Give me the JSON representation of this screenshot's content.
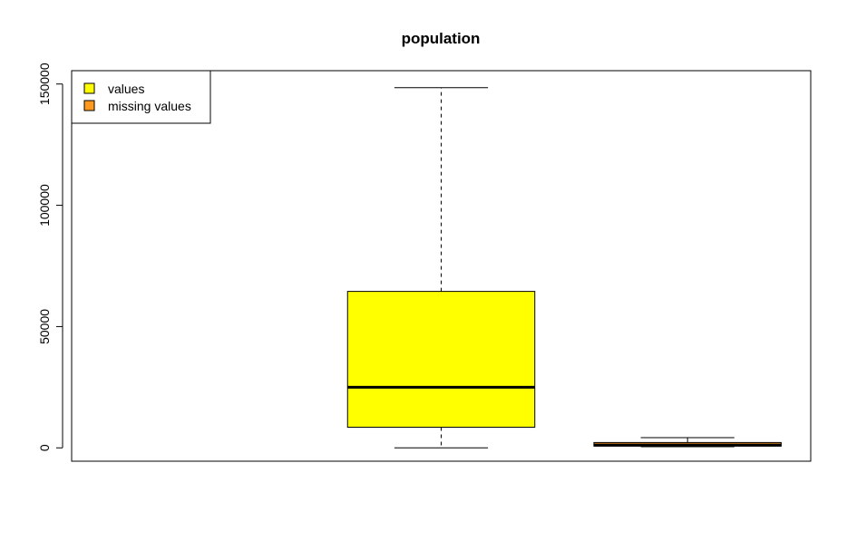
{
  "chart_data": {
    "type": "boxplot",
    "title": "population",
    "xlabel": "",
    "ylabel": "",
    "ylim": [
      -5500,
      155500
    ],
    "yticks": [
      0,
      50000,
      100000,
      150000
    ],
    "ytick_labels": [
      "0",
      "50000",
      "100000",
      "150000"
    ],
    "grid": false,
    "legend": {
      "placement": "top-left",
      "entries": [
        {
          "label": "values",
          "color": "#FFFF00"
        },
        {
          "label": "missing values",
          "color": "#FF9A1E"
        }
      ]
    },
    "boxes": [
      {
        "series": "values",
        "color": "#FFFF00",
        "whisker_low": 0,
        "q1": 8500,
        "median": 25000,
        "q3": 64500,
        "whisker_high": 148500,
        "whisker_style": "dashed"
      },
      {
        "series": "missing values",
        "color": "#FF9A1E",
        "whisker_low": 500,
        "q1": 700,
        "median": 1200,
        "q3": 2200,
        "whisker_high": 4200,
        "whisker_style": "solid"
      }
    ]
  }
}
